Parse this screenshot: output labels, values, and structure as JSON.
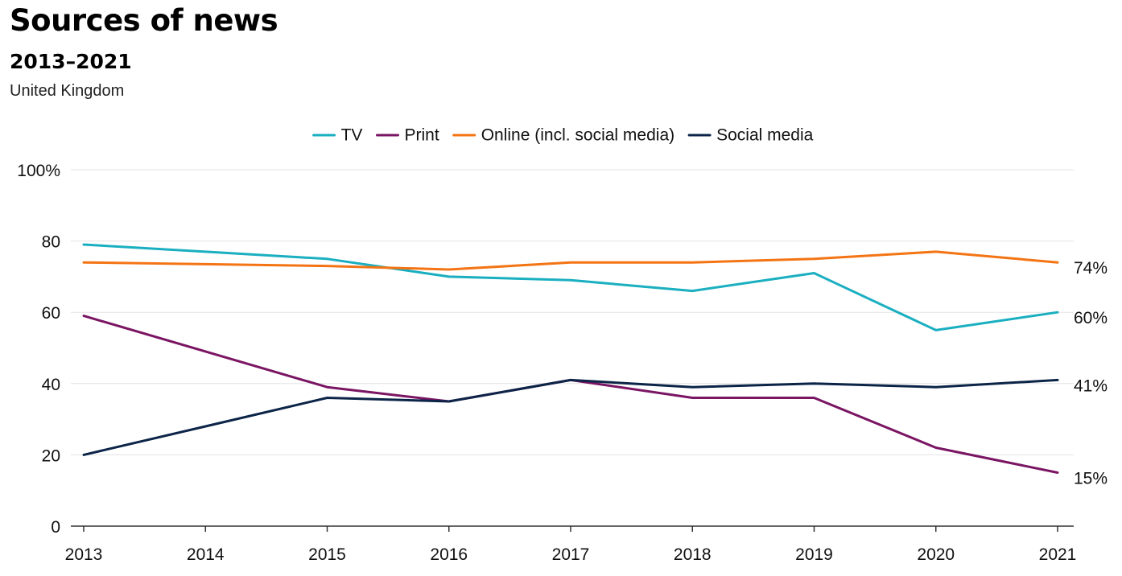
{
  "header": {
    "title": "Sources of news",
    "subtitle": "2013–2021",
    "note": "United Kingdom"
  },
  "chart_data": {
    "type": "line",
    "title": "Sources of news",
    "subtitle": "2013–2021",
    "xlabel": "",
    "ylabel": "",
    "categories": [
      "2013",
      "2014",
      "2015",
      "2016",
      "2017",
      "2018",
      "2019",
      "2020",
      "2021"
    ],
    "ylim": [
      0,
      100
    ],
    "yticks": [
      0,
      20,
      40,
      60,
      80,
      100
    ],
    "ytick_labels": [
      "0",
      "20",
      "40",
      "60",
      "80",
      "100%"
    ],
    "grid": true,
    "legend_position": "top-center",
    "series": [
      {
        "name": "TV",
        "color": "#1AAFC0",
        "end_label": "60%",
        "values": [
          79,
          77,
          75,
          70,
          69,
          66,
          71,
          55,
          60
        ]
      },
      {
        "name": "Print",
        "color": "#7A1563",
        "end_label": "15%",
        "values": [
          59,
          49,
          39,
          35,
          41,
          36,
          36,
          22,
          15
        ]
      },
      {
        "name": "Online (incl. social media)",
        "color": "#F47414",
        "end_label": "74%",
        "values": [
          74,
          73.5,
          73,
          72,
          74,
          74,
          75,
          77,
          74
        ]
      },
      {
        "name": "Social media",
        "color": "#0B2447",
        "end_label": "41%",
        "values": [
          20,
          28,
          36,
          35,
          41,
          39,
          40,
          39,
          41
        ]
      }
    ]
  }
}
